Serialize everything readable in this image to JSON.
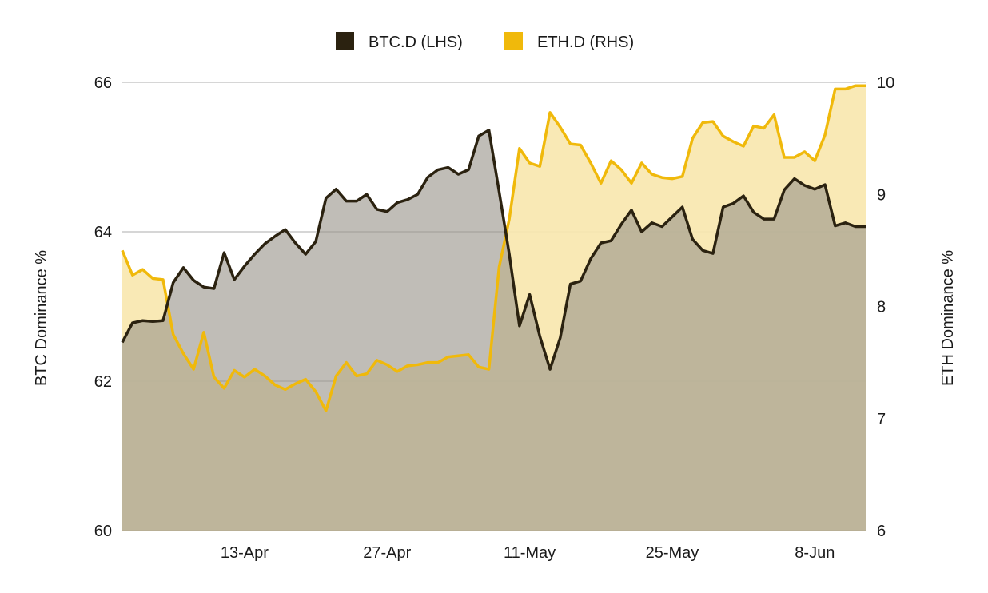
{
  "chart_data": {
    "type": "area",
    "x_ticks": [
      "13-Apr",
      "27-Apr",
      "11-May",
      "25-May",
      "8-Jun"
    ],
    "x_tick_index": [
      12,
      26,
      40,
      54,
      68
    ],
    "n_points": 74,
    "ylabel_left": "BTC Dominance %",
    "ylabel_right": "ETH Dominance %",
    "ylim_left": [
      60,
      66
    ],
    "ylim_right": [
      6,
      10
    ],
    "yticks_left": [
      60,
      62,
      64,
      66
    ],
    "yticks_right": [
      6,
      7,
      8,
      9,
      10
    ],
    "grid": true,
    "legend_position": "top-center",
    "series": [
      {
        "name": "BTC.D (LHS)",
        "axis": "left",
        "color": "#2b2210",
        "values": [
          62.52,
          62.78,
          62.81,
          62.8,
          62.81,
          63.32,
          63.52,
          63.35,
          63.26,
          63.24,
          63.72,
          63.36,
          63.54,
          63.7,
          63.84,
          63.94,
          64.03,
          63.85,
          63.7,
          63.87,
          64.45,
          64.57,
          64.41,
          64.41,
          64.5,
          64.3,
          64.27,
          64.39,
          64.43,
          64.5,
          64.73,
          64.83,
          64.86,
          64.77,
          64.83,
          65.28,
          65.36,
          64.54,
          63.7,
          62.74,
          63.16,
          62.6,
          62.16,
          62.58,
          63.3,
          63.34,
          63.64,
          63.85,
          63.88,
          64.1,
          64.29,
          64.0,
          64.12,
          64.07,
          64.2,
          64.33,
          63.9,
          63.75,
          63.71,
          64.33,
          64.38,
          64.48,
          64.26,
          64.17,
          64.17,
          64.56,
          64.71,
          64.62,
          64.57,
          64.63,
          64.08,
          64.12,
          64.07,
          64.07
        ]
      },
      {
        "name": "ETH.D (RHS)",
        "axis": "right",
        "color": "#f0b90b",
        "values": [
          8.5,
          8.28,
          8.33,
          8.25,
          8.24,
          7.75,
          7.58,
          7.44,
          7.77,
          7.37,
          7.27,
          7.43,
          7.37,
          7.44,
          7.38,
          7.3,
          7.26,
          7.31,
          7.35,
          7.24,
          7.07,
          7.38,
          7.5,
          7.38,
          7.4,
          7.52,
          7.48,
          7.42,
          7.47,
          7.48,
          7.5,
          7.5,
          7.55,
          7.56,
          7.57,
          7.46,
          7.44,
          8.35,
          8.78,
          9.41,
          9.28,
          9.25,
          9.73,
          9.6,
          9.45,
          9.44,
          9.28,
          9.1,
          9.3,
          9.22,
          9.1,
          9.28,
          9.18,
          9.15,
          9.14,
          9.16,
          9.5,
          9.64,
          9.65,
          9.52,
          9.47,
          9.43,
          9.61,
          9.59,
          9.71,
          9.33,
          9.33,
          9.38,
          9.3,
          9.53,
          9.94,
          9.94,
          9.97,
          9.97
        ]
      }
    ]
  }
}
